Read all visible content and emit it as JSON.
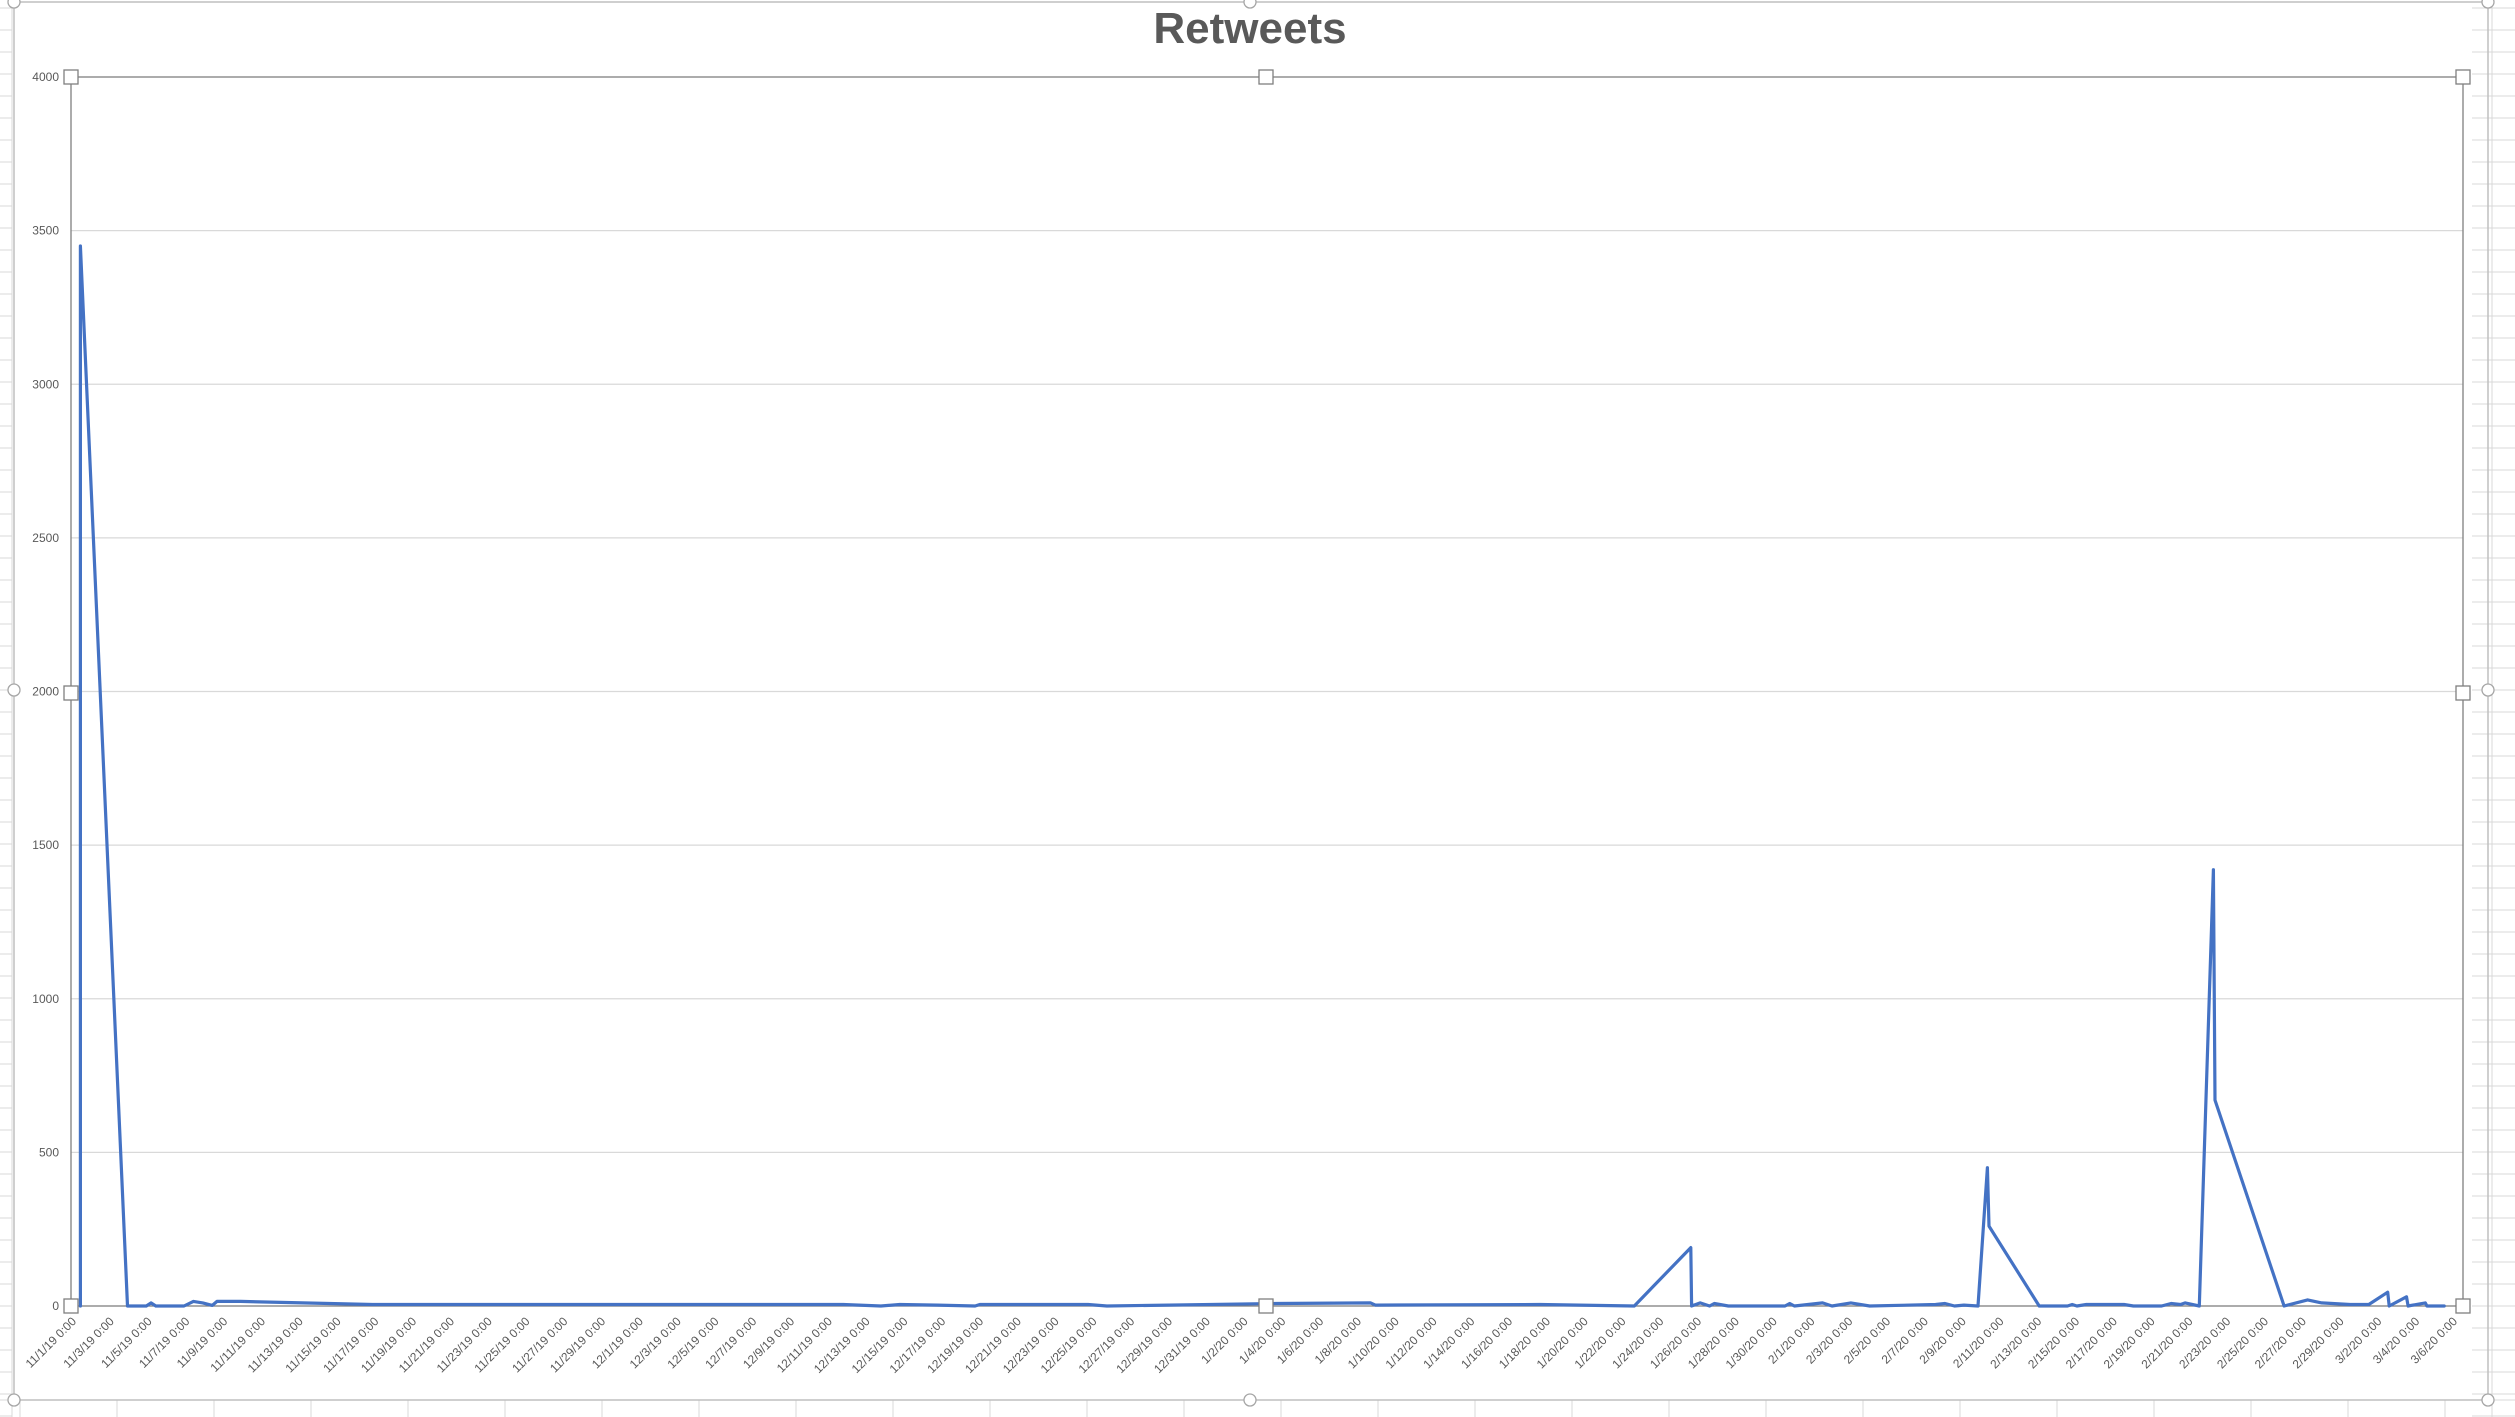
{
  "chart_data": {
    "type": "line",
    "title": "Retweets",
    "xlabel": "",
    "ylabel": "",
    "ylim": [
      0,
      4000
    ],
    "y_ticks": [
      "0",
      "500",
      "1000",
      "1500",
      "2000",
      "2500",
      "3000",
      "3500",
      "4000"
    ],
    "x_tick_labels": [
      "11/1/19 0:00",
      "11/3/19 0:00",
      "11/5/19 0:00",
      "11/7/19 0:00",
      "11/9/19 0:00",
      "11/11/19 0:00",
      "11/13/19 0:00",
      "11/15/19 0:00",
      "11/17/19 0:00",
      "11/19/19 0:00",
      "11/21/19 0:00",
      "11/23/19 0:00",
      "11/25/19 0:00",
      "11/27/19 0:00",
      "11/29/19 0:00",
      "12/1/19 0:00",
      "12/3/19 0:00",
      "12/5/19 0:00",
      "12/7/19 0:00",
      "12/9/19 0:00",
      "12/11/19 0:00",
      "12/13/19 0:00",
      "12/15/19 0:00",
      "12/17/19 0:00",
      "12/19/19 0:00",
      "12/21/19 0:00",
      "12/23/19 0:00",
      "12/25/19 0:00",
      "12/27/19 0:00",
      "12/29/19 0:00",
      "12/31/19 0:00",
      "1/2/20 0:00",
      "1/4/20 0:00",
      "1/6/20 0:00",
      "1/8/20 0:00",
      "1/10/20 0:00",
      "1/12/20 0:00",
      "1/14/20 0:00",
      "1/16/20 0:00",
      "1/18/20 0:00",
      "1/20/20 0:00",
      "1/22/20 0:00",
      "1/24/20 0:00",
      "1/26/20 0:00",
      "1/28/20 0:00",
      "1/30/20 0:00",
      "2/1/20 0:00",
      "2/3/20 0:00",
      "2/5/20 0:00",
      "2/7/20 0:00",
      "2/9/20 0:00",
      "2/11/20 0:00",
      "2/13/20 0:00",
      "2/15/20 0:00",
      "2/17/20 0:00",
      "2/19/20 0:00",
      "2/21/20 0:00",
      "2/23/20 0:00",
      "2/25/20 0:00",
      "2/27/20 0:00",
      "2/29/20 0:00",
      "3/2/20 0:00",
      "3/4/20 0:00",
      "3/6/20 0:00"
    ],
    "x_range": [
      "2019-11-01",
      "2020-03-07"
    ],
    "grid": true,
    "legend": "none",
    "series": [
      {
        "color": "#4472c4",
        "points": [
          [
            "2019-11-01T12:00",
            0
          ],
          [
            "2019-11-01T12:00",
            3450
          ],
          [
            "2019-11-04T00:00",
            0
          ],
          [
            "2019-11-05T00:00",
            0
          ],
          [
            "2019-11-05T06:00",
            10
          ],
          [
            "2019-11-05T12:00",
            0
          ],
          [
            "2019-11-07T00:00",
            0
          ],
          [
            "2019-11-07T12:00",
            15
          ],
          [
            "2019-11-08T00:00",
            10
          ],
          [
            "2019-11-08T12:00",
            2
          ],
          [
            "2019-11-08T18:00",
            15
          ],
          [
            "2019-11-10T00:00",
            15
          ],
          [
            "2019-11-17T00:00",
            5
          ],
          [
            "2019-11-25T00:00",
            5
          ],
          [
            "2019-12-02T00:00",
            5
          ],
          [
            "2019-12-12T00:00",
            5
          ],
          [
            "2019-12-14T00:00",
            0
          ],
          [
            "2019-12-15T00:00",
            5
          ],
          [
            "2019-12-17T00:00",
            3
          ],
          [
            "2019-12-19T00:00",
            0
          ],
          [
            "2019-12-19T06:00",
            5
          ],
          [
            "2019-12-25T00:00",
            5
          ],
          [
            "2019-12-26T00:00",
            0
          ],
          [
            "2020-01-04T00:00",
            8
          ],
          [
            "2020-01-09T00:00",
            10
          ],
          [
            "2020-01-09T06:00",
            3
          ],
          [
            "2020-01-18T00:00",
            5
          ],
          [
            "2020-01-23T00:00",
            0
          ],
          [
            "2020-01-26T00:00",
            190
          ],
          [
            "2020-01-26T01:00",
            0
          ],
          [
            "2020-01-26T12:00",
            10
          ],
          [
            "2020-01-27T00:00",
            0
          ],
          [
            "2020-01-27T06:00",
            8
          ],
          [
            "2020-01-28T00:00",
            0
          ],
          [
            "2020-01-31T00:00",
            0
          ],
          [
            "2020-01-31T06:00",
            8
          ],
          [
            "2020-01-31T12:00",
            0
          ],
          [
            "2020-02-02T00:00",
            10
          ],
          [
            "2020-02-02T12:00",
            0
          ],
          [
            "2020-02-03T12:00",
            10
          ],
          [
            "2020-02-04T12:00",
            0
          ],
          [
            "2020-02-08T00:00",
            5
          ],
          [
            "2020-02-08T12:00",
            8
          ],
          [
            "2020-02-09T00:00",
            0
          ],
          [
            "2020-02-09T12:00",
            3
          ],
          [
            "2020-02-10T06:00",
            0
          ],
          [
            "2020-02-10T18:00",
            450
          ],
          [
            "2020-02-10T20:00",
            260
          ],
          [
            "2020-02-13T12:00",
            0
          ],
          [
            "2020-02-15T00:00",
            0
          ],
          [
            "2020-02-15T06:00",
            5
          ],
          [
            "2020-02-15T12:00",
            0
          ],
          [
            "2020-02-16T00:00",
            5
          ],
          [
            "2020-02-18T00:00",
            5
          ],
          [
            "2020-02-18T12:00",
            0
          ],
          [
            "2020-02-20T00:00",
            0
          ],
          [
            "2020-02-20T12:00",
            8
          ],
          [
            "2020-02-21T00:00",
            5
          ],
          [
            "2020-02-21T06:00",
            10
          ],
          [
            "2020-02-22T00:00",
            0
          ],
          [
            "2020-02-22T18:00",
            1420
          ],
          [
            "2020-02-22T20:00",
            670
          ],
          [
            "2020-02-26T12:00",
            0
          ],
          [
            "2020-02-27T18:00",
            20
          ],
          [
            "2020-02-28T12:00",
            10
          ],
          [
            "2020-03-01T00:00",
            5
          ],
          [
            "2020-03-02T00:00",
            5
          ],
          [
            "2020-03-03T00:00",
            45
          ],
          [
            "2020-03-03T02:00",
            0
          ],
          [
            "2020-03-04T00:00",
            30
          ],
          [
            "2020-03-04T02:00",
            0
          ],
          [
            "2020-03-05T00:00",
            10
          ],
          [
            "2020-03-05T02:00",
            0
          ],
          [
            "2020-03-06T00:00",
            0
          ]
        ]
      }
    ]
  }
}
